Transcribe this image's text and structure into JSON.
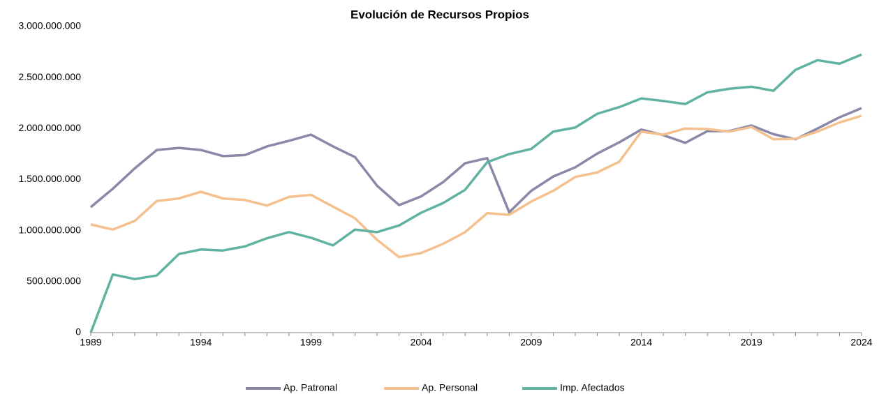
{
  "chart_data": {
    "type": "line",
    "title": "Evolución de Recursos Propios",
    "x": [
      1989,
      1990,
      1991,
      1992,
      1993,
      1994,
      1995,
      1996,
      1997,
      1998,
      1999,
      2000,
      2001,
      2002,
      2003,
      2004,
      2005,
      2006,
      2007,
      2008,
      2009,
      2010,
      2011,
      2012,
      2013,
      2014,
      2015,
      2016,
      2017,
      2018,
      2019,
      2020,
      2021,
      2022,
      2023,
      2024
    ],
    "series": [
      {
        "name": "Ap. Patronal",
        "color": "#8a88a8",
        "values": [
          1230000000,
          1410000000,
          1610000000,
          1790000000,
          1810000000,
          1790000000,
          1730000000,
          1740000000,
          1825000000,
          1880000000,
          1940000000,
          1825000000,
          1720000000,
          1440000000,
          1250000000,
          1335000000,
          1475000000,
          1660000000,
          1710000000,
          1180000000,
          1390000000,
          1530000000,
          1620000000,
          1755000000,
          1865000000,
          1990000000,
          1935000000,
          1860000000,
          1975000000,
          1975000000,
          2030000000,
          1945000000,
          1895000000,
          2000000000,
          2110000000,
          2200000000
        ]
      },
      {
        "name": "Ap. Personal",
        "color": "#f4c08e",
        "values": [
          1060000000,
          1010000000,
          1095000000,
          1290000000,
          1315000000,
          1380000000,
          1315000000,
          1300000000,
          1245000000,
          1330000000,
          1350000000,
          1235000000,
          1120000000,
          910000000,
          740000000,
          780000000,
          870000000,
          985000000,
          1170000000,
          1155000000,
          1285000000,
          1390000000,
          1525000000,
          1570000000,
          1675000000,
          1970000000,
          1940000000,
          2000000000,
          1995000000,
          1970000000,
          2015000000,
          1895000000,
          1900000000,
          1970000000,
          2060000000,
          2125000000
        ]
      },
      {
        "name": "Imp. Afectados",
        "color": "#5fb3a0",
        "values": [
          0,
          570000000,
          525000000,
          560000000,
          770000000,
          815000000,
          805000000,
          845000000,
          925000000,
          985000000,
          930000000,
          855000000,
          1010000000,
          985000000,
          1050000000,
          1175000000,
          1270000000,
          1400000000,
          1670000000,
          1750000000,
          1800000000,
          1970000000,
          2010000000,
          2145000000,
          2210000000,
          2295000000,
          2270000000,
          2240000000,
          2355000000,
          2390000000,
          2410000000,
          2370000000,
          2575000000,
          2670000000,
          2635000000,
          2725000000
        ]
      }
    ],
    "xlim": [
      1989,
      2024
    ],
    "xticks": [
      1989,
      1994,
      1999,
      2004,
      2009,
      2014,
      2019,
      2024
    ],
    "ylim": [
      0,
      3000000000
    ],
    "yticks": [
      0,
      {
        "value": 500000000,
        "label": "500.000.000"
      },
      {
        "value": 1000000000,
        "label": "1.000.000.000"
      },
      {
        "value": 1500000000,
        "label": "1.500.000.000"
      },
      {
        "value": 2000000000,
        "label": "2.000.000.000"
      },
      {
        "value": 2500000000,
        "label": "2.500.000.000"
      },
      {
        "value": 3000000000,
        "label": "3.000.000.000"
      }
    ],
    "grid": false,
    "legend": "bottom"
  }
}
